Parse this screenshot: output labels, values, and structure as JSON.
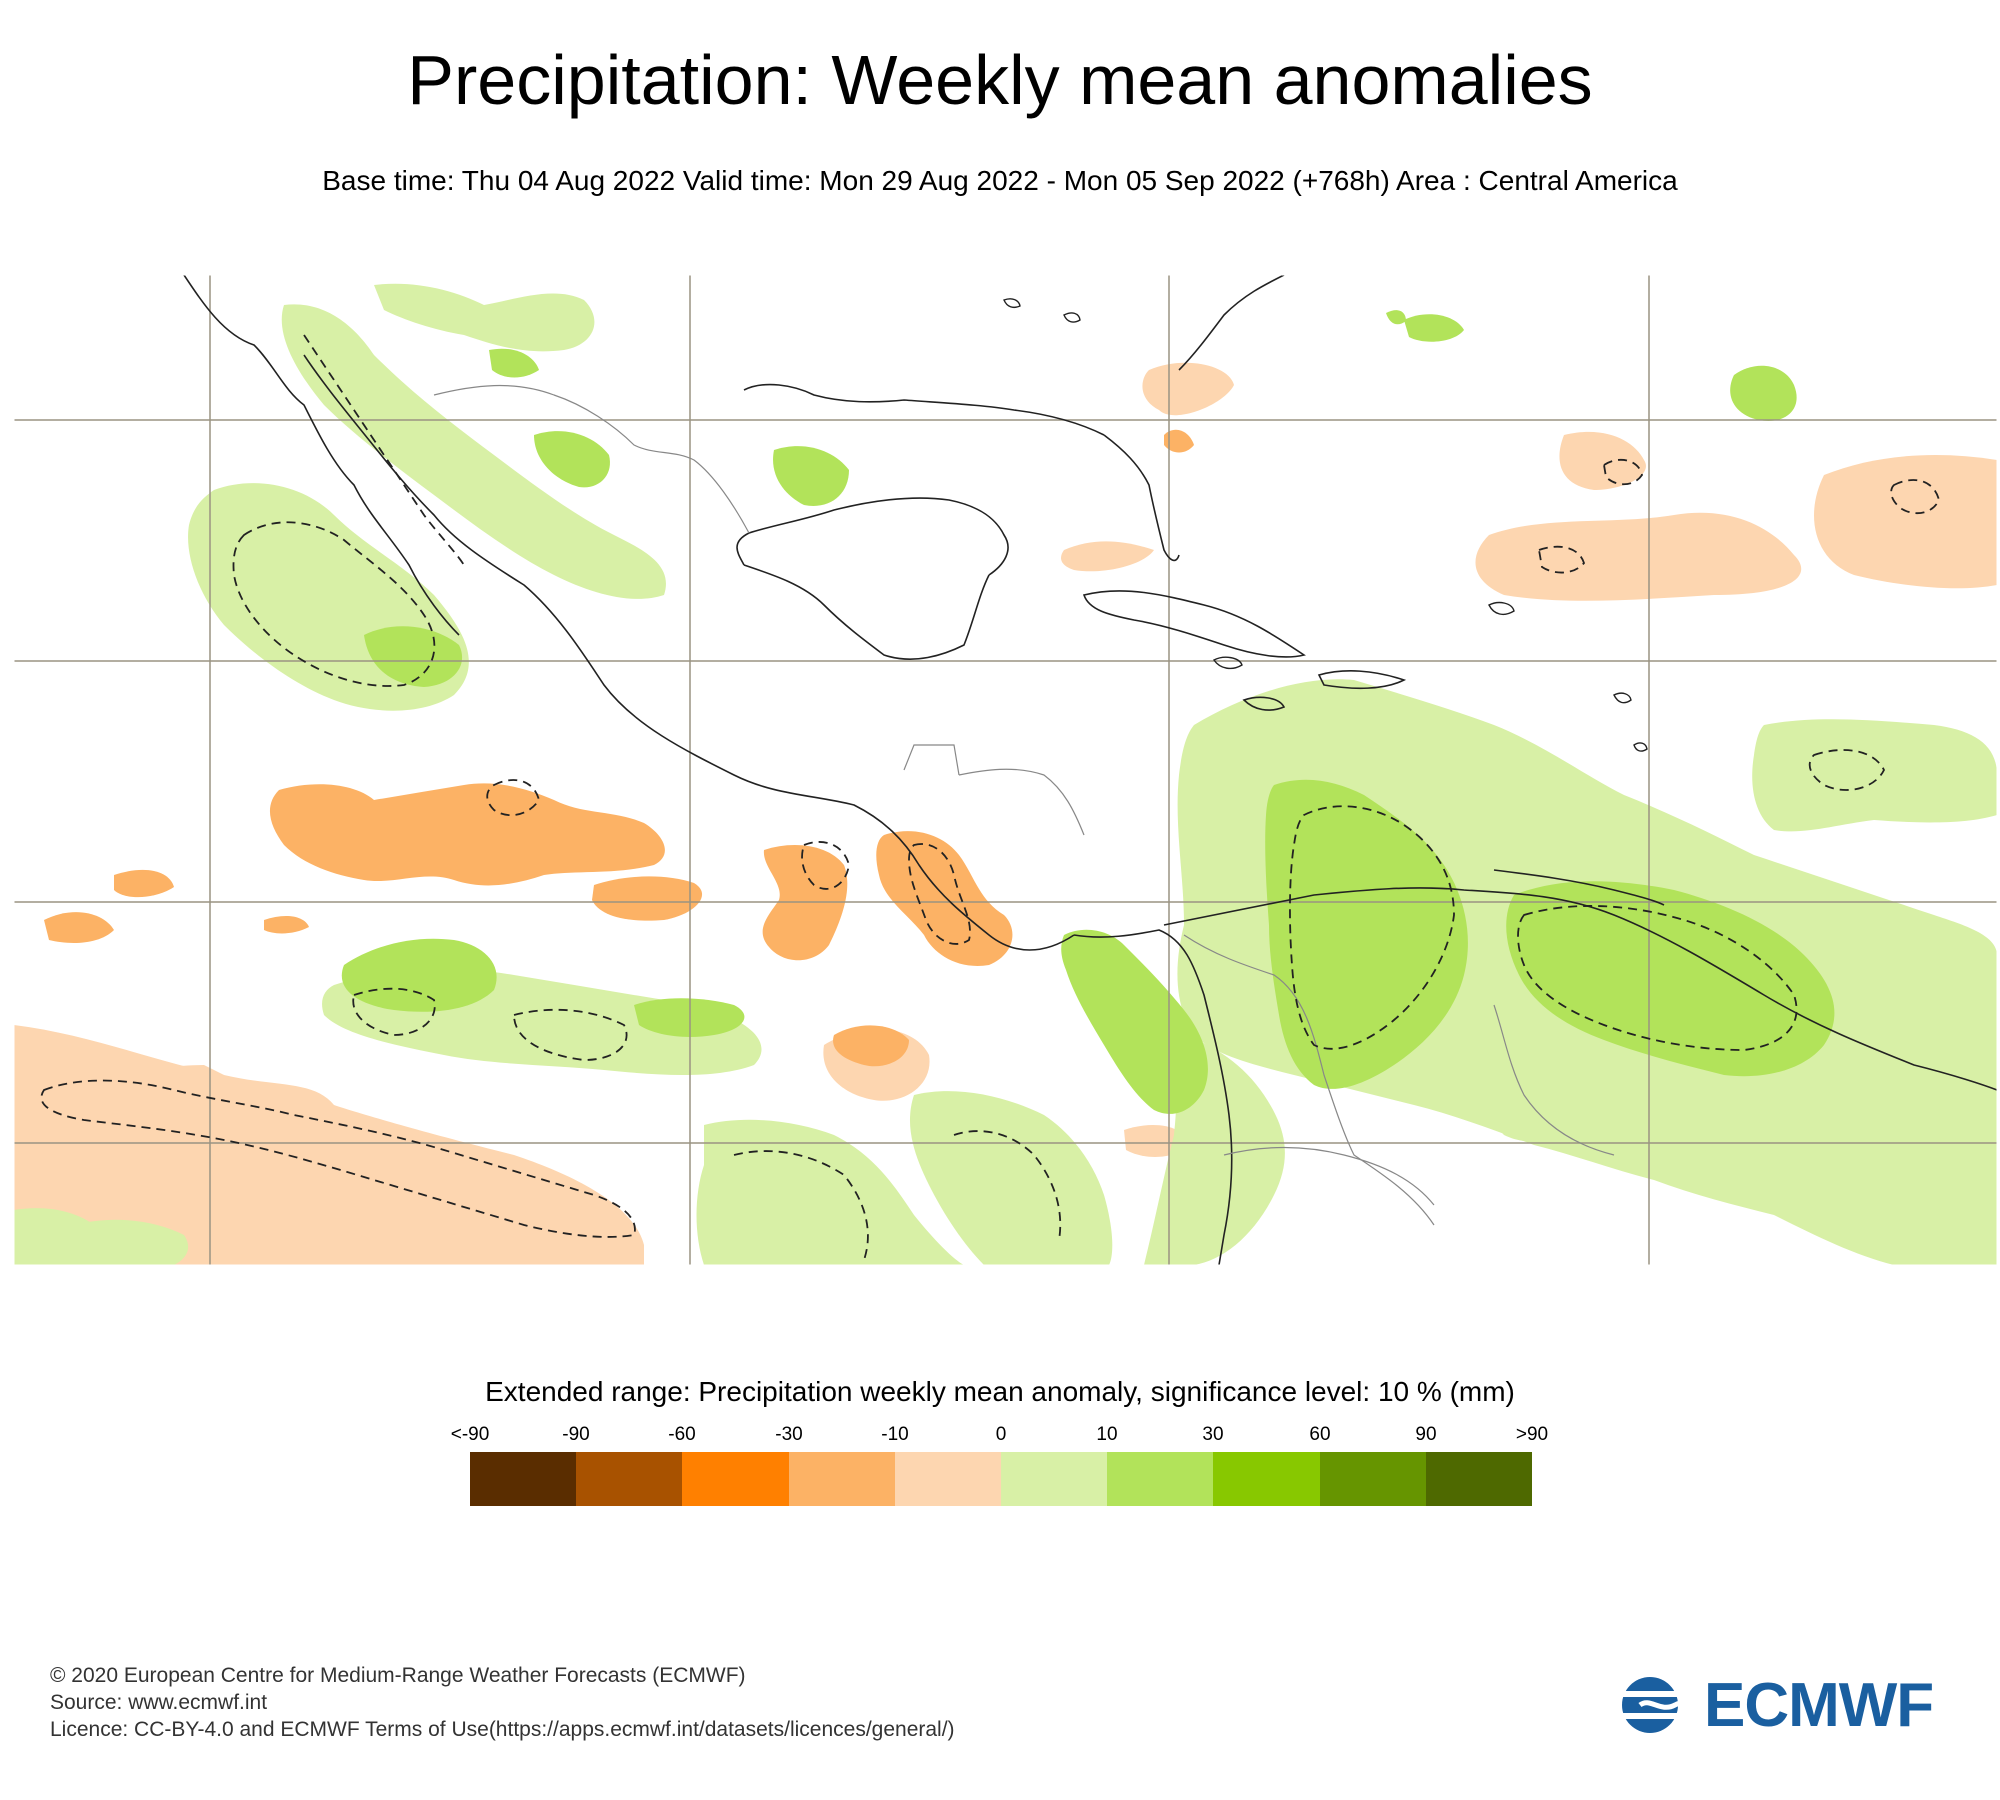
{
  "title": "Precipitation: Weekly mean anomalies",
  "subtitle": "Base time: Thu 04 Aug 2022 Valid time: Mon 29 Aug 2022 - Mon 05 Sep 2022 (+768h) Area : Central America",
  "map": {
    "region": "Central America",
    "colors": {
      "graticule": "#9a9382",
      "coastline": "#222222",
      "border": "#888888"
    }
  },
  "legend": {
    "title": "Extended range: Precipitation weekly mean anomaly, significance level: 10 % (mm)",
    "ticks": [
      "<-90",
      "-90",
      "-60",
      "-30",
      "-10",
      "0",
      "10",
      "30",
      "60",
      "90",
      ">90"
    ],
    "colors": [
      "#5a2d00",
      "#a85200",
      "#ff8000",
      "#fcb265",
      "#fdd6b0",
      "#d8f0a6",
      "#b2e35a",
      "#88c800",
      "#669500",
      "#4e6900"
    ]
  },
  "footer": {
    "copyright": "© 2020 European Centre for Medium-Range Weather Forecasts (ECMWF)",
    "source": "Source: www.ecmwf.int",
    "licence": "Licence: CC-BY-4.0 and ECMWF Terms of Use(https://apps.ecmwf.int/datasets/licences/general/)"
  },
  "logo": {
    "text": "ECMWF",
    "color": "#1a5fa0"
  }
}
